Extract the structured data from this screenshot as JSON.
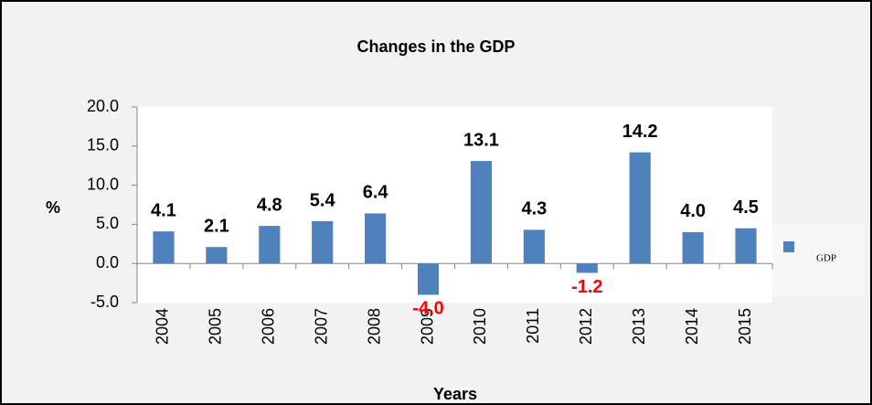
{
  "chart_data": {
    "type": "bar",
    "title": "Changes in the GDP",
    "x_label": "Years",
    "y_label": "%",
    "categories": [
      "2004",
      "2005",
      "2006",
      "2007",
      "2008",
      "2009",
      "2010",
      "2011",
      "2012",
      "2013",
      "2014",
      "2015"
    ],
    "series": [
      {
        "name": "GDP",
        "color": "#4f81bd",
        "values": [
          4.1,
          2.1,
          4.8,
          5.4,
          6.4,
          -4.0,
          13.1,
          4.3,
          -1.2,
          14.2,
          4.0,
          4.5
        ],
        "value_labels": [
          "4.1",
          "2.1",
          "4.8",
          "5.4",
          "6.4",
          "-4.0",
          "13.1",
          "4.3",
          "-1.2",
          "14.2",
          "4.0",
          "4.5"
        ]
      }
    ],
    "ylim": [
      -5,
      20
    ],
    "yticks": [
      {
        "value": -5,
        "label": "-5.0"
      },
      {
        "value": 0,
        "label": "0.0"
      },
      {
        "value": 5,
        "label": "5.0"
      },
      {
        "value": 10,
        "label": "10.0"
      },
      {
        "value": 15,
        "label": "15.0"
      },
      {
        "value": 20,
        "label": "20.0"
      }
    ],
    "grid": false,
    "legend": "right",
    "label_color": "#000000",
    "negative_label_color": "#ff0000"
  }
}
